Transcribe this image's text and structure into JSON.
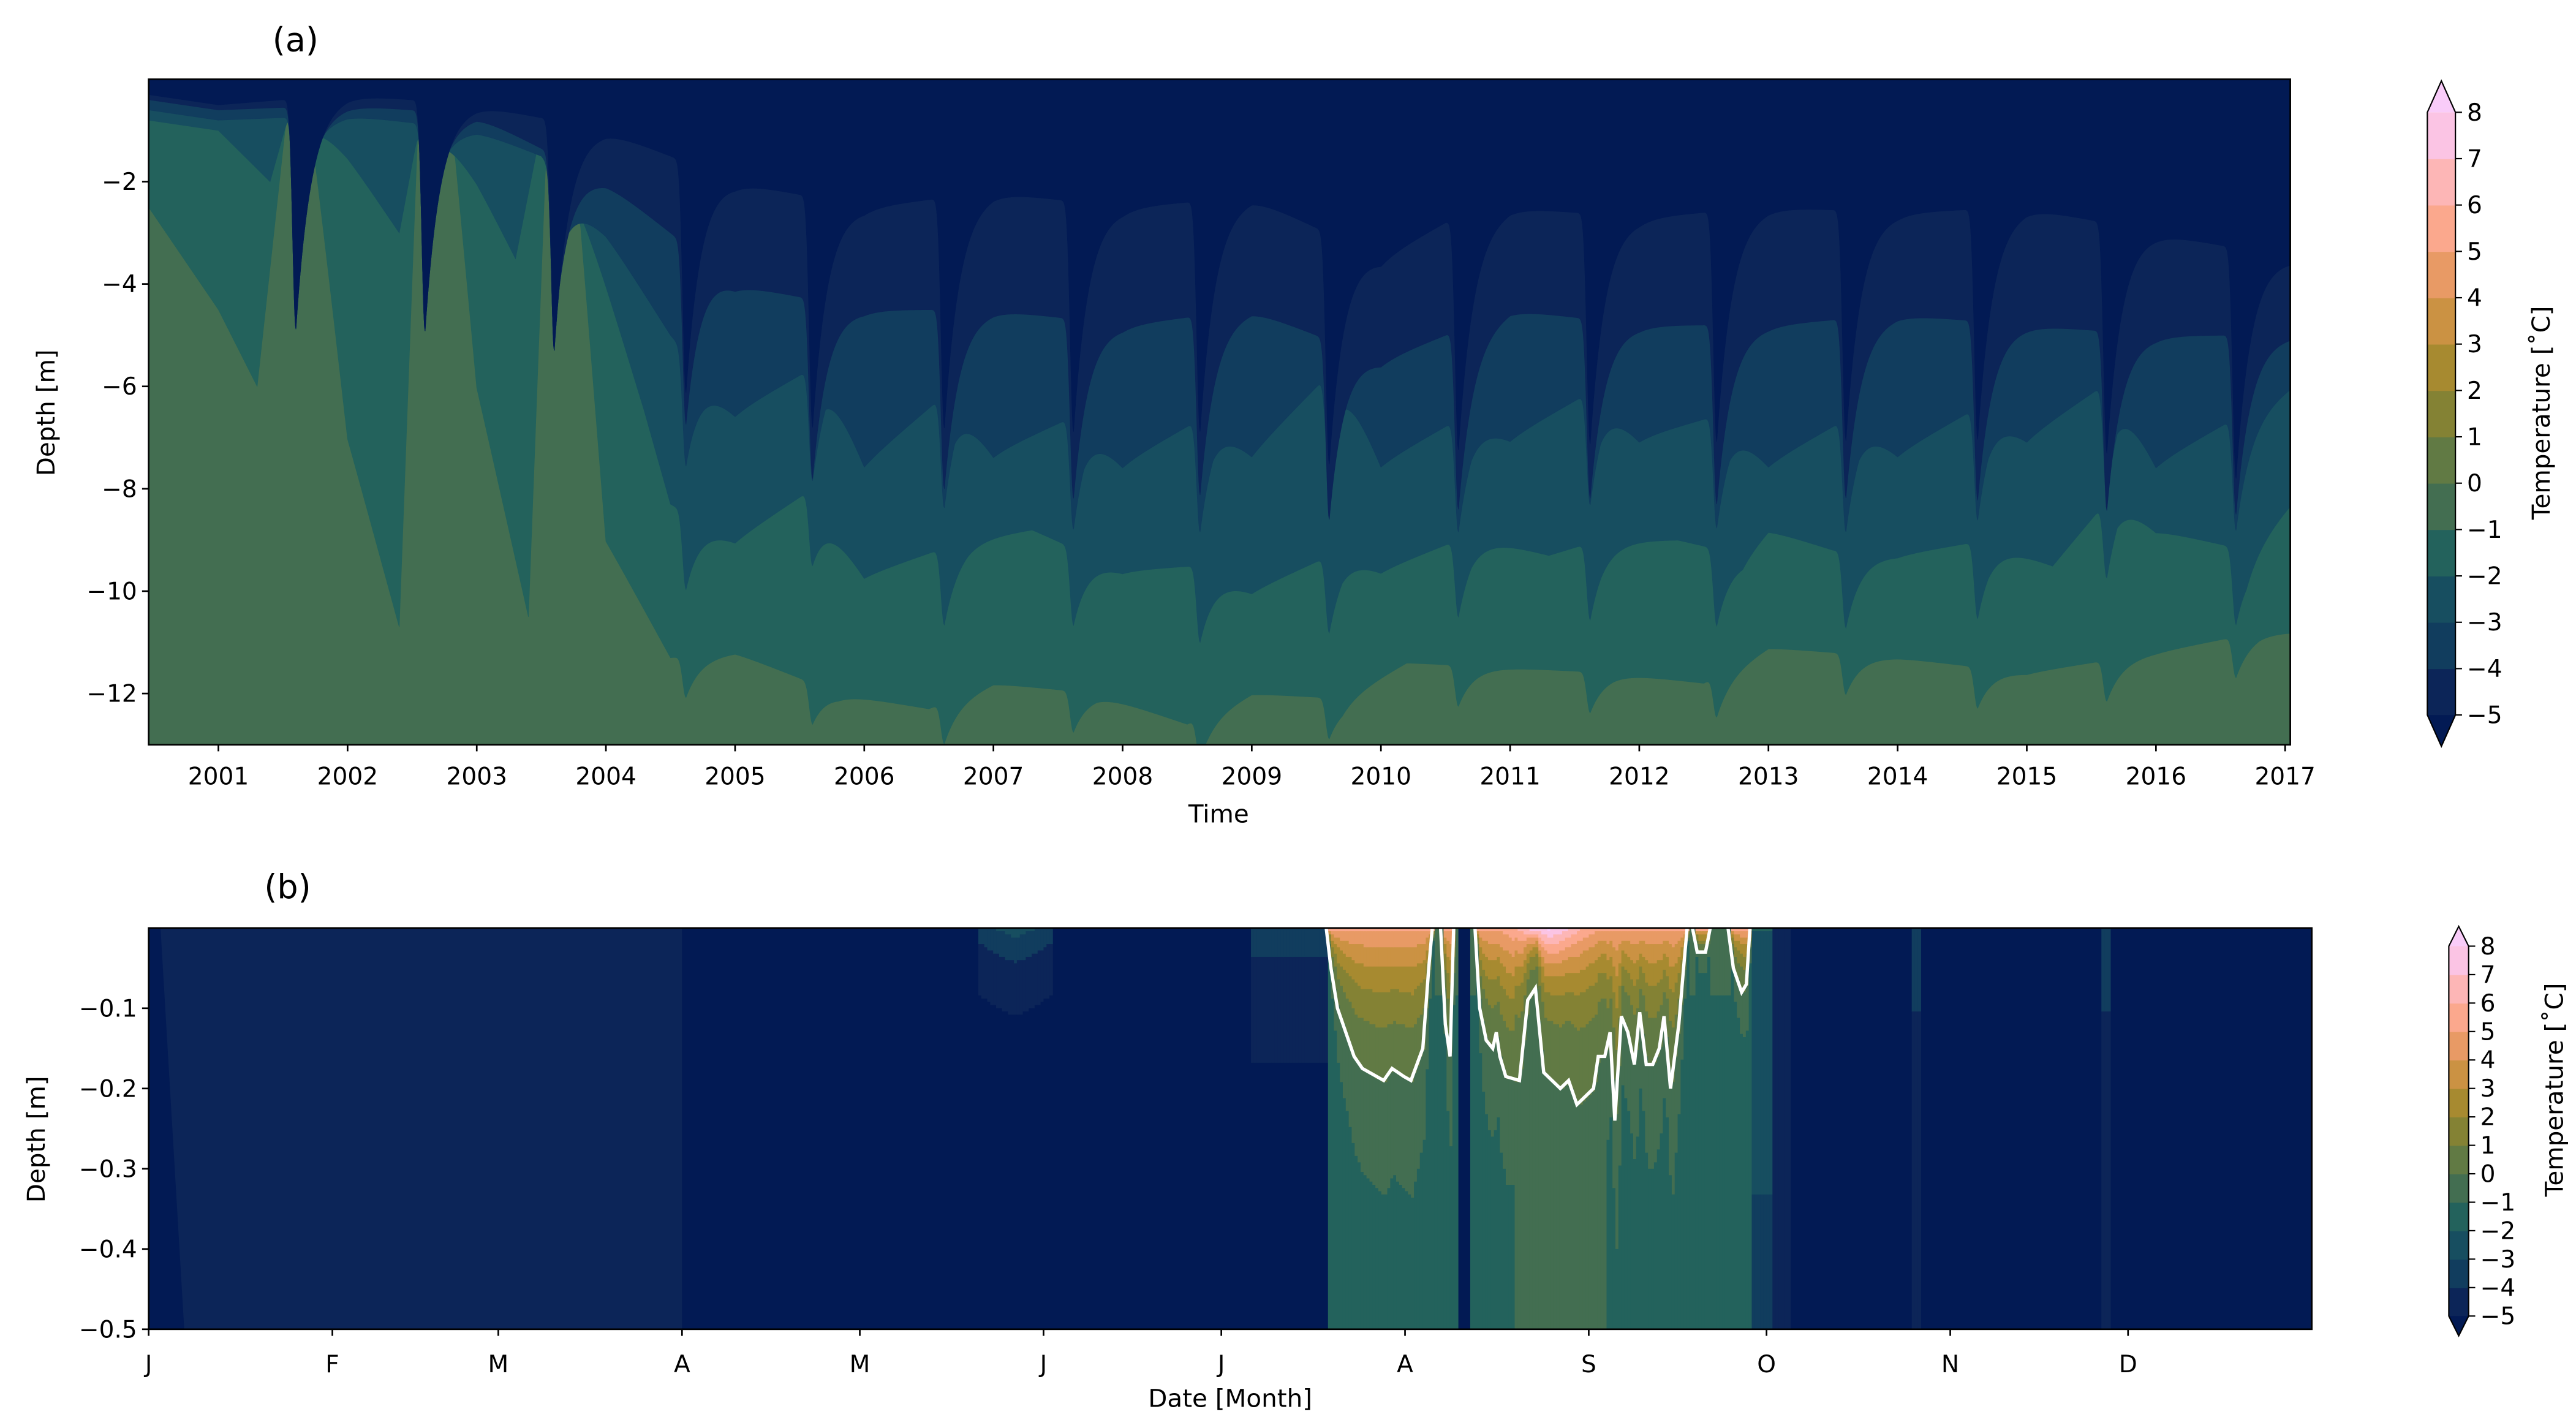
{
  "chart_data": [
    {
      "type": "heatmap",
      "panel_label": "(a)",
      "xlabel": "Time",
      "ylabel": "Depth [m]",
      "xlim": [
        2000.46,
        2017.04
      ],
      "ylim": [
        -13,
        0
      ],
      "xticks": [
        2001,
        2002,
        2003,
        2004,
        2005,
        2006,
        2007,
        2008,
        2009,
        2010,
        2011,
        2012,
        2013,
        2014,
        2015,
        2016,
        2017
      ],
      "yticks": [
        -2,
        -4,
        -6,
        -8,
        -10,
        -12
      ],
      "levels": [
        -5,
        -4,
        -3,
        -2,
        -1,
        0,
        1,
        2,
        3,
        4,
        5,
        6,
        7,
        8
      ],
      "colors": [
        "#021a54",
        "#0c2558",
        "#113d5e",
        "#174e60",
        "#23625c",
        "#436e51",
        "#617a44",
        "#848234",
        "#a78a30",
        "#cb9243",
        "#e89a65",
        "#fba88d",
        "#fdb6b6",
        "#fbc4e4",
        "#f9ccf9"
      ],
      "extend": "both",
      "colorbar_label": "Temperature [˚C]",
      "colorbar_ticks": [
        8,
        7,
        6,
        5,
        4,
        3,
        2,
        1,
        0,
        -1,
        -2,
        -3,
        -4,
        -5
      ],
      "summer_peaks": [
        2001.6,
        2002.6,
        2003.6,
        2004.62,
        2005.6,
        2006.62,
        2007.62,
        2008.6,
        2009.6,
        2010.6,
        2011.62,
        2012.6,
        2013.6,
        2014.62,
        2015.62,
        2016.62
      ],
      "isotherms": [
        {
          "level": -5,
          "points": [
            [
              2000.46,
              -0.3
            ],
            [
              2001,
              -0.5
            ],
            [
              2002,
              -0.3
            ],
            [
              2003,
              -0.5
            ],
            [
              2004,
              -1
            ],
            [
              2004.5,
              -1.5
            ],
            [
              2005,
              -2
            ],
            [
              2006,
              -2.5
            ],
            [
              2007,
              -2.2
            ],
            [
              2008,
              -2.5
            ],
            [
              2009,
              -2.3
            ],
            [
              2010,
              -3.5
            ],
            [
              2010.5,
              -2.8
            ],
            [
              2011,
              -2.5
            ],
            [
              2012,
              -2.7
            ],
            [
              2013,
              -2.5
            ],
            [
              2014,
              -2.6
            ],
            [
              2015,
              -2.5
            ],
            [
              2016,
              -3
            ],
            [
              2017.04,
              -3.5
            ]
          ]
        },
        {
          "level": -4,
          "points": [
            [
              2000.46,
              -0.4
            ],
            [
              2001,
              -0.6
            ],
            [
              2002,
              -0.5
            ],
            [
              2003,
              -0.7
            ],
            [
              2004,
              -2
            ],
            [
              2004.5,
              -3
            ],
            [
              2005,
              -4
            ],
            [
              2006,
              -4.5
            ],
            [
              2007,
              -4.5
            ],
            [
              2008,
              -4.8
            ],
            [
              2009,
              -4.5
            ],
            [
              2010,
              -5.5
            ],
            [
              2011,
              -4.5
            ],
            [
              2012,
              -4.8
            ],
            [
              2013,
              -4.8
            ],
            [
              2014,
              -4.6
            ],
            [
              2015,
              -4.8
            ],
            [
              2016,
              -5
            ],
            [
              2017.04,
              -5
            ]
          ]
        },
        {
          "level": -3,
          "points": [
            [
              2000.46,
              -0.6
            ],
            [
              2001,
              -0.8
            ],
            [
              2002,
              -0.7
            ],
            [
              2003,
              -1
            ],
            [
              2003.5,
              -1.5
            ],
            [
              2004,
              -3
            ],
            [
              2004.5,
              -5
            ],
            [
              2005,
              -6.5
            ],
            [
              2005.7,
              -5.5
            ],
            [
              2006,
              -7.5
            ],
            [
              2006.7,
              -6
            ],
            [
              2007,
              -7.3
            ],
            [
              2007.7,
              -6.5
            ],
            [
              2008,
              -7.5
            ],
            [
              2008.7,
              -6.5
            ],
            [
              2009,
              -7.3
            ],
            [
              2009.7,
              -5.5
            ],
            [
              2010,
              -7.5
            ],
            [
              2010.7,
              -6.5
            ],
            [
              2011,
              -7
            ],
            [
              2011.7,
              -6
            ],
            [
              2012,
              -7
            ],
            [
              2012.7,
              -6.5
            ],
            [
              2013,
              -7.5
            ],
            [
              2013.7,
              -6.5
            ],
            [
              2014,
              -7.3
            ],
            [
              2014.7,
              -6.3
            ],
            [
              2015,
              -7
            ],
            [
              2015.7,
              -5.8
            ],
            [
              2016,
              -7.5
            ],
            [
              2016.7,
              -6.5
            ],
            [
              2017.04,
              -6
            ]
          ]
        },
        {
          "level": -2,
          "points": [
            [
              2000.46,
              -0.8
            ],
            [
              2001,
              -1
            ],
            [
              2001.4,
              -2
            ],
            [
              2001.6,
              -0.2
            ],
            [
              2002,
              -1.5
            ],
            [
              2002.4,
              -3
            ],
            [
              2002.6,
              -0.3
            ],
            [
              2003,
              -2
            ],
            [
              2003.3,
              -3.5
            ],
            [
              2003.55,
              -0.3
            ],
            [
              2004,
              -4
            ],
            [
              2004.3,
              -6.5
            ],
            [
              2004.5,
              -8.3
            ],
            [
              2005,
              -9
            ],
            [
              2005.6,
              -8
            ],
            [
              2006,
              -9.7
            ],
            [
              2006.8,
              -9
            ],
            [
              2007.3,
              -8.8
            ],
            [
              2008,
              -9.6
            ],
            [
              2008.6,
              -9.5
            ],
            [
              2009,
              -10
            ],
            [
              2009.7,
              -9.2
            ],
            [
              2010,
              -9.6
            ],
            [
              2010.7,
              -8.9
            ],
            [
              2011.3,
              -9.3
            ],
            [
              2011.7,
              -9
            ],
            [
              2012.3,
              -9
            ],
            [
              2012.8,
              -9.3
            ],
            [
              2013,
              -8.8
            ],
            [
              2013.5,
              -9.2
            ],
            [
              2014,
              -9.3
            ],
            [
              2014.7,
              -9
            ],
            [
              2015.2,
              -9.5
            ],
            [
              2015.7,
              -8
            ],
            [
              2016,
              -8.8
            ],
            [
              2016.7,
              -9.2
            ],
            [
              2017.04,
              -8.3
            ]
          ]
        },
        {
          "level": -1,
          "points": [
            [
              2000.46,
              -2.5
            ],
            [
              2001,
              -4.5
            ],
            [
              2001.3,
              -6
            ],
            [
              2001.55,
              -0.2
            ],
            [
              2001.7,
              -0.3
            ],
            [
              2002,
              -7
            ],
            [
              2002.4,
              -10.7
            ],
            [
              2002.55,
              -0.5
            ],
            [
              2002.8,
              -0.5
            ],
            [
              2003,
              -6
            ],
            [
              2003.4,
              -10.5
            ],
            [
              2003.55,
              -0.5
            ],
            [
              2003.75,
              -1
            ],
            [
              2004,
              -9
            ],
            [
              2004.5,
              -11.3
            ],
            [
              2005,
              -11.2
            ],
            [
              2005.8,
              -12
            ],
            [
              2006.5,
              -12.3
            ],
            [
              2007,
              -11.8
            ],
            [
              2007.8,
              -12
            ],
            [
              2008.5,
              -12.6
            ],
            [
              2009,
              -12
            ],
            [
              2009.7,
              -12.1
            ],
            [
              2010.2,
              -11.4
            ],
            [
              2011,
              -11.5
            ],
            [
              2011.8,
              -11.6
            ],
            [
              2012.5,
              -11.8
            ],
            [
              2013,
              -11.1
            ],
            [
              2014,
              -11.3
            ],
            [
              2015,
              -11.6
            ],
            [
              2016,
              -11.2
            ],
            [
              2016.8,
              -10.8
            ],
            [
              2017.04,
              -10.8
            ]
          ]
        }
      ]
    },
    {
      "type": "heatmap",
      "panel_label": "(b)",
      "xlabel": "Date [Month]",
      "ylabel": "Depth [m]",
      "xlim_day_of_year": [
        0,
        365
      ],
      "ylim": [
        -0.5,
        0
      ],
      "xticks": [
        "J",
        "F",
        "M",
        "A",
        "M",
        "J",
        "J",
        "A",
        "S",
        "O",
        "N",
        "D"
      ],
      "xtick_days": [
        0,
        31,
        59,
        90,
        120,
        151,
        181,
        212,
        243,
        273,
        304,
        334
      ],
      "yticks": [
        -0.1,
        -0.2,
        -0.3,
        -0.4,
        -0.5
      ],
      "colorbar_label": "Temperature [˚C]",
      "colorbar_ticks": [
        8,
        7,
        6,
        5,
        4,
        3,
        2,
        1,
        0,
        -1,
        -2,
        -3,
        -4,
        -5
      ],
      "zero_isotherm_color": "#ffffff",
      "zero_isotherm_segments": [
        [
          [
            198.7,
            0
          ],
          [
            199.5,
            -0.05
          ],
          [
            200.6,
            -0.1
          ],
          [
            202,
            -0.13
          ],
          [
            203.4,
            -0.16
          ],
          [
            204.8,
            -0.175
          ],
          [
            206,
            -0.18
          ],
          [
            208.4,
            -0.19
          ],
          [
            209.8,
            -0.175
          ],
          [
            211.8,
            -0.185
          ],
          [
            213,
            -0.19
          ],
          [
            214,
            -0.17
          ],
          [
            215,
            -0.15
          ],
          [
            216,
            -0.05
          ],
          [
            216.6,
            0
          ]
        ],
        [
          [
            218,
            0
          ],
          [
            218.8,
            -0.12
          ],
          [
            219.6,
            -0.16
          ],
          [
            220.2,
            0
          ]
        ],
        [
          [
            223.8,
            0
          ],
          [
            224.6,
            -0.1
          ],
          [
            225.7,
            -0.14
          ],
          [
            226.8,
            -0.15
          ],
          [
            227.4,
            -0.13
          ],
          [
            228,
            -0.16
          ],
          [
            229,
            -0.185
          ],
          [
            231.3,
            -0.19
          ],
          [
            232.7,
            -0.09
          ],
          [
            234,
            -0.075
          ],
          [
            235.4,
            -0.18
          ],
          [
            236.8,
            -0.19
          ],
          [
            238.2,
            -0.2
          ],
          [
            239.6,
            -0.19
          ],
          [
            241,
            -0.22
          ],
          [
            242.4,
            -0.21
          ],
          [
            243.8,
            -0.2
          ],
          [
            244.6,
            -0.16
          ],
          [
            245.7,
            -0.16
          ],
          [
            246.6,
            -0.13
          ],
          [
            247.4,
            -0.24
          ],
          [
            248.5,
            -0.11
          ],
          [
            249.6,
            -0.13
          ],
          [
            250.7,
            -0.17
          ],
          [
            251.6,
            -0.105
          ],
          [
            252.7,
            -0.17
          ],
          [
            253.8,
            -0.17
          ],
          [
            254.9,
            -0.15
          ],
          [
            255.7,
            -0.11
          ],
          [
            256.8,
            -0.2
          ],
          [
            258.2,
            -0.12
          ],
          [
            259,
            -0.05
          ],
          [
            259.6,
            0
          ]
        ],
        [
          [
            260.5,
            0
          ],
          [
            261.3,
            -0.03
          ],
          [
            262.7,
            -0.03
          ],
          [
            263.5,
            0
          ]
        ],
        [
          [
            266.5,
            0
          ],
          [
            267.4,
            -0.05
          ],
          [
            268.8,
            -0.08
          ],
          [
            269.6,
            -0.07
          ],
          [
            270.2,
            0
          ]
        ]
      ]
    }
  ]
}
